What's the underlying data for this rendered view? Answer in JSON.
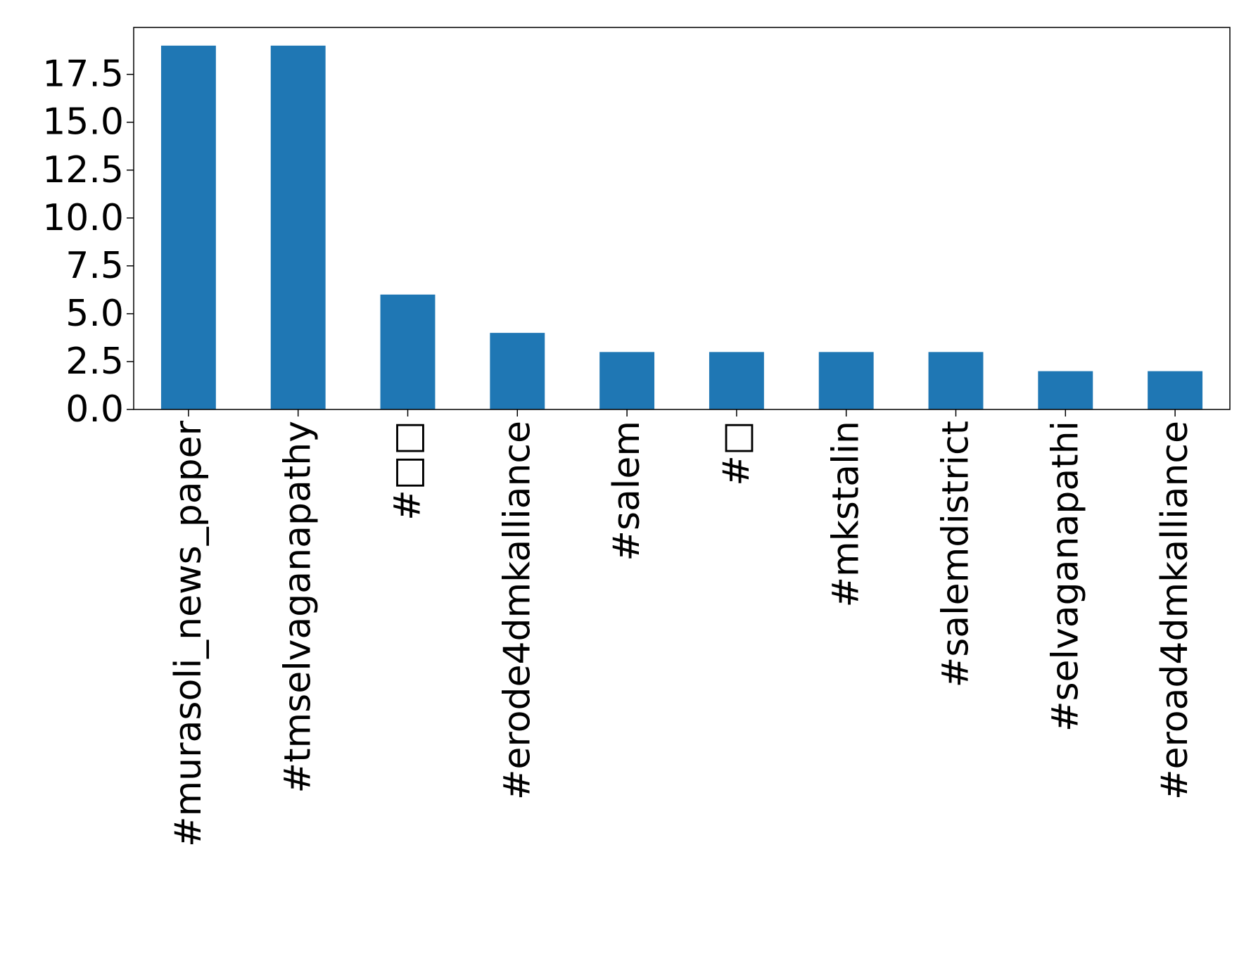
{
  "chart_data": {
    "type": "bar",
    "title": "",
    "xlabel": "",
    "ylabel": "",
    "categories": [
      "#murasoli_news_paper",
      "#tmselvaganapathy",
      "#□□",
      "#erode4dmkalliance",
      "#salem",
      "#□",
      "#mkstalin",
      "#salemdistrict",
      "#selvaganapathi",
      "#eroad4dmkalliance"
    ],
    "values": [
      19,
      19,
      6,
      4,
      3,
      3,
      3,
      3,
      2,
      2
    ],
    "ylim": [
      0,
      19.95
    ],
    "yticks": [
      0.0,
      2.5,
      5.0,
      7.5,
      10.0,
      12.5,
      15.0,
      17.5
    ],
    "ytick_labels": [
      "0.0",
      "2.5",
      "5.0",
      "7.5",
      "10.0",
      "12.5",
      "15.0",
      "17.5"
    ],
    "bar_color": "#1f77b4",
    "grid": false,
    "legend": false
  }
}
